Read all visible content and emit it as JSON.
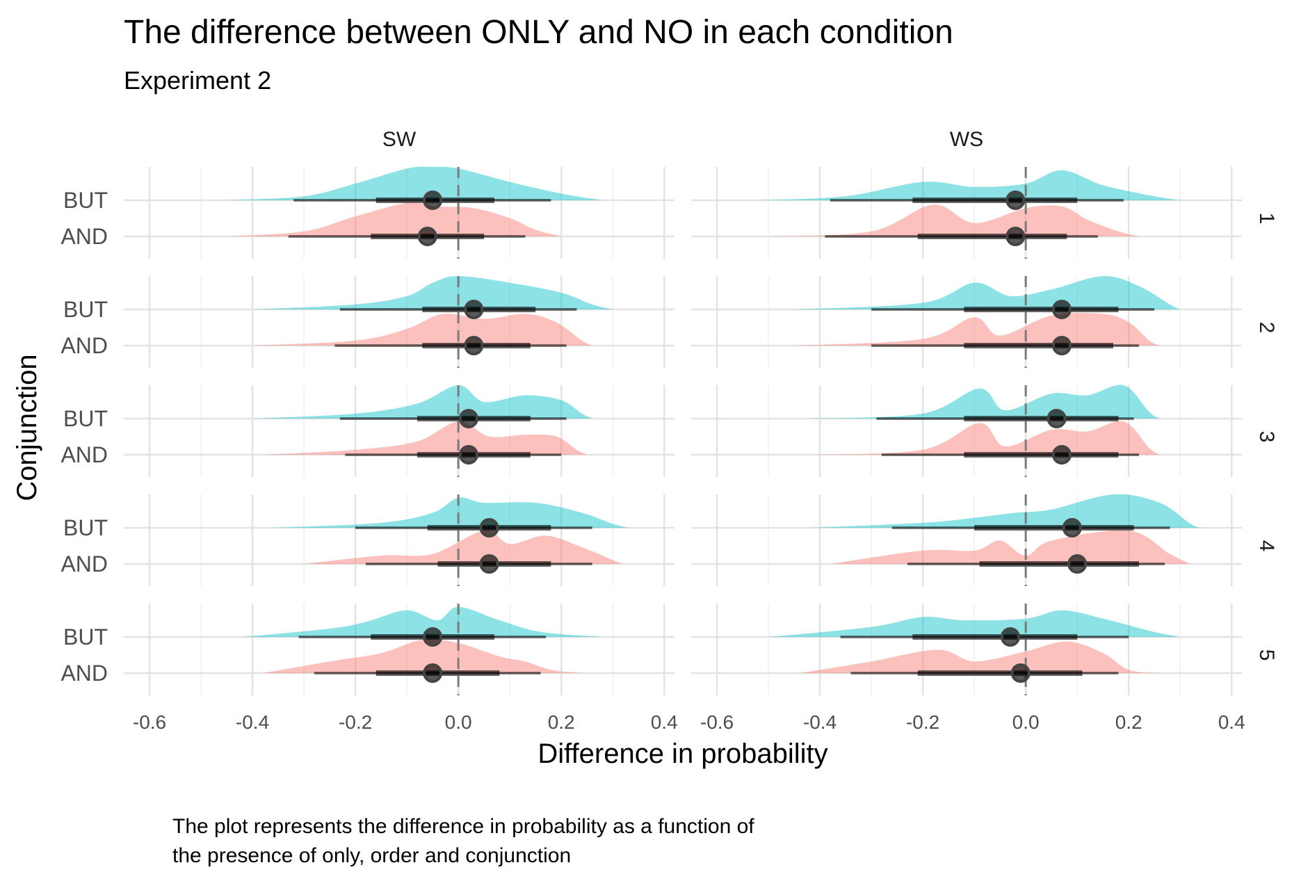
{
  "chart_data": {
    "type": "ridgeline-interval",
    "title": "The difference between ONLY and NO in each condition",
    "subtitle": "Experiment 2",
    "xlabel": "Difference in probability",
    "ylabel": "Conjunction",
    "caption": [
      "The plot represents the difference in probability as a function of",
      "the presence of only, order and conjunction"
    ],
    "columns": [
      "SW",
      "WS"
    ],
    "rows": [
      "1",
      "2",
      "3",
      "4",
      "5"
    ],
    "categories": [
      "BUT",
      "AND"
    ],
    "x_ticks": [
      "-0.6",
      "-0.4",
      "-0.2",
      "0.0",
      "0.2",
      "0.4"
    ],
    "xlim": [
      -0.65,
      0.42
    ],
    "colors": {
      "BUT": "#00BFC4",
      "AND": "#F8766D"
    },
    "reference_line": 0.0,
    "panels": [
      {
        "col": "SW",
        "row": "1",
        "series": [
          {
            "name": "BUT",
            "point": -0.05,
            "inner": [
              -0.16,
              0.07
            ],
            "outer": [
              -0.32,
              0.18
            ],
            "range": [
              -0.45,
              0.28
            ],
            "density": [
              [
                -0.3,
                0.12
              ],
              [
                -0.2,
                0.5
              ],
              [
                -0.1,
                0.95
              ],
              [
                -0.05,
                1.0
              ],
              [
                0.0,
                0.95
              ],
              [
                0.1,
                0.55
              ],
              [
                0.2,
                0.2
              ]
            ]
          },
          {
            "name": "AND",
            "point": -0.06,
            "inner": [
              -0.17,
              0.05
            ],
            "outer": [
              -0.33,
              0.13
            ],
            "range": [
              -0.45,
              0.2
            ],
            "density": [
              [
                -0.3,
                0.15
              ],
              [
                -0.2,
                0.6
              ],
              [
                -0.1,
                1.0
              ],
              [
                -0.04,
                0.9
              ],
              [
                0.03,
                0.85
              ],
              [
                0.1,
                0.55
              ],
              [
                0.15,
                0.2
              ]
            ]
          }
        ]
      },
      {
        "col": "WS",
        "row": "1",
        "series": [
          {
            "name": "BUT",
            "point": -0.02,
            "inner": [
              -0.22,
              0.1
            ],
            "outer": [
              -0.38,
              0.19
            ],
            "range": [
              -0.52,
              0.3
            ],
            "density": [
              [
                -0.35,
                0.12
              ],
              [
                -0.2,
                0.55
              ],
              [
                -0.1,
                0.4
              ],
              [
                0.0,
                0.5
              ],
              [
                0.07,
                0.9
              ],
              [
                0.15,
                0.45
              ],
              [
                0.25,
                0.12
              ]
            ]
          },
          {
            "name": "AND",
            "point": -0.02,
            "inner": [
              -0.21,
              0.08
            ],
            "outer": [
              -0.39,
              0.14
            ],
            "range": [
              -0.5,
              0.22
            ],
            "density": [
              [
                -0.3,
                0.15
              ],
              [
                -0.18,
                0.95
              ],
              [
                -0.1,
                0.4
              ],
              [
                0.0,
                0.85
              ],
              [
                0.07,
                0.9
              ],
              [
                0.12,
                0.5
              ],
              [
                0.18,
                0.15
              ]
            ]
          }
        ]
      },
      {
        "col": "SW",
        "row": "2",
        "series": [
          {
            "name": "BUT",
            "point": 0.03,
            "inner": [
              -0.07,
              0.15
            ],
            "outer": [
              -0.23,
              0.23
            ],
            "range": [
              -0.4,
              0.3
            ],
            "density": [
              [
                -0.2,
                0.15
              ],
              [
                -0.1,
                0.4
              ],
              [
                -0.05,
                0.8
              ],
              [
                0.0,
                1.0
              ],
              [
                0.1,
                0.8
              ],
              [
                0.2,
                0.5
              ],
              [
                0.26,
                0.15
              ]
            ]
          },
          {
            "name": "AND",
            "point": 0.03,
            "inner": [
              -0.07,
              0.14
            ],
            "outer": [
              -0.24,
              0.21
            ],
            "range": [
              -0.4,
              0.26
            ],
            "density": [
              [
                -0.2,
                0.15
              ],
              [
                -0.1,
                0.5
              ],
              [
                -0.03,
                0.95
              ],
              [
                0.05,
                0.8
              ],
              [
                0.13,
                0.95
              ],
              [
                0.19,
                0.7
              ],
              [
                0.24,
                0.15
              ]
            ]
          }
        ]
      },
      {
        "col": "WS",
        "row": "2",
        "series": [
          {
            "name": "BUT",
            "point": 0.07,
            "inner": [
              -0.12,
              0.18
            ],
            "outer": [
              -0.3,
              0.25
            ],
            "range": [
              -0.45,
              0.3
            ],
            "density": [
              [
                -0.2,
                0.2
              ],
              [
                -0.1,
                0.8
              ],
              [
                -0.03,
                0.4
              ],
              [
                0.05,
                0.6
              ],
              [
                0.15,
                1.0
              ],
              [
                0.22,
                0.7
              ],
              [
                0.28,
                0.15
              ]
            ]
          },
          {
            "name": "AND",
            "point": 0.07,
            "inner": [
              -0.12,
              0.17
            ],
            "outer": [
              -0.3,
              0.22
            ],
            "range": [
              -0.45,
              0.26
            ],
            "density": [
              [
                -0.2,
                0.2
              ],
              [
                -0.1,
                0.85
              ],
              [
                -0.05,
                0.3
              ],
              [
                0.05,
                0.9
              ],
              [
                0.15,
                0.95
              ],
              [
                0.2,
                0.7
              ],
              [
                0.24,
                0.15
              ]
            ]
          }
        ]
      },
      {
        "col": "SW",
        "row": "3",
        "series": [
          {
            "name": "BUT",
            "point": 0.02,
            "inner": [
              -0.08,
              0.14
            ],
            "outer": [
              -0.23,
              0.21
            ],
            "range": [
              -0.4,
              0.26
            ],
            "density": [
              [
                -0.2,
                0.15
              ],
              [
                -0.08,
                0.45
              ],
              [
                0.0,
                1.0
              ],
              [
                0.05,
                0.5
              ],
              [
                0.13,
                0.7
              ],
              [
                0.2,
                0.55
              ],
              [
                0.24,
                0.15
              ]
            ]
          },
          {
            "name": "AND",
            "point": 0.02,
            "inner": [
              -0.08,
              0.14
            ],
            "outer": [
              -0.22,
              0.2
            ],
            "range": [
              -0.38,
              0.25
            ],
            "density": [
              [
                -0.2,
                0.15
              ],
              [
                -0.08,
                0.4
              ],
              [
                0.0,
                1.0
              ],
              [
                0.06,
                0.55
              ],
              [
                0.13,
                0.6
              ],
              [
                0.19,
                0.55
              ],
              [
                0.23,
                0.15
              ]
            ]
          }
        ]
      },
      {
        "col": "WS",
        "row": "3",
        "series": [
          {
            "name": "BUT",
            "point": 0.06,
            "inner": [
              -0.12,
              0.18
            ],
            "outer": [
              -0.29,
              0.21
            ],
            "range": [
              -0.42,
              0.26
            ],
            "density": [
              [
                -0.2,
                0.15
              ],
              [
                -0.09,
                0.9
              ],
              [
                -0.04,
                0.25
              ],
              [
                0.05,
                0.75
              ],
              [
                0.12,
                0.7
              ],
              [
                0.19,
                1.0
              ],
              [
                0.24,
                0.2
              ]
            ]
          },
          {
            "name": "AND",
            "point": 0.07,
            "inner": [
              -0.12,
              0.18
            ],
            "outer": [
              -0.28,
              0.22
            ],
            "range": [
              -0.42,
              0.26
            ],
            "density": [
              [
                -0.2,
                0.15
              ],
              [
                -0.09,
                0.95
              ],
              [
                -0.04,
                0.25
              ],
              [
                0.05,
                0.75
              ],
              [
                0.12,
                0.7
              ],
              [
                0.19,
                1.0
              ],
              [
                0.24,
                0.2
              ]
            ]
          }
        ]
      },
      {
        "col": "SW",
        "row": "4",
        "series": [
          {
            "name": "BUT",
            "point": 0.06,
            "inner": [
              -0.06,
              0.18
            ],
            "outer": [
              -0.2,
              0.26
            ],
            "range": [
              -0.36,
              0.33
            ],
            "density": [
              [
                -0.15,
                0.15
              ],
              [
                -0.05,
                0.45
              ],
              [
                0.0,
                0.9
              ],
              [
                0.05,
                0.75
              ],
              [
                0.15,
                0.75
              ],
              [
                0.24,
                0.45
              ],
              [
                0.3,
                0.12
              ]
            ]
          },
          {
            "name": "AND",
            "point": 0.06,
            "inner": [
              -0.04,
              0.18
            ],
            "outer": [
              -0.18,
              0.26
            ],
            "range": [
              -0.3,
              0.32
            ],
            "density": [
              [
                -0.15,
                0.25
              ],
              [
                -0.05,
                0.3
              ],
              [
                0.05,
                1.0
              ],
              [
                0.1,
                0.6
              ],
              [
                0.17,
                0.85
              ],
              [
                0.24,
                0.5
              ],
              [
                0.3,
                0.12
              ]
            ]
          }
        ]
      },
      {
        "col": "WS",
        "row": "4",
        "series": [
          {
            "name": "BUT",
            "point": 0.09,
            "inner": [
              -0.1,
              0.21
            ],
            "outer": [
              -0.26,
              0.28
            ],
            "range": [
              -0.42,
              0.34
            ],
            "density": [
              [
                -0.2,
                0.15
              ],
              [
                -0.1,
                0.3
              ],
              [
                -0.02,
                0.45
              ],
              [
                0.05,
                0.55
              ],
              [
                0.17,
                1.0
              ],
              [
                0.26,
                0.75
              ],
              [
                0.32,
                0.12
              ]
            ]
          },
          {
            "name": "AND",
            "point": 0.1,
            "inner": [
              -0.09,
              0.22
            ],
            "outer": [
              -0.23,
              0.27
            ],
            "range": [
              -0.38,
              0.32
            ],
            "density": [
              [
                -0.2,
                0.4
              ],
              [
                -0.1,
                0.4
              ],
              [
                -0.05,
                0.7
              ],
              [
                0.0,
                0.25
              ],
              [
                0.05,
                0.7
              ],
              [
                0.2,
                1.0
              ],
              [
                0.28,
                0.3
              ]
            ]
          }
        ]
      },
      {
        "col": "SW",
        "row": "5",
        "series": [
          {
            "name": "BUT",
            "point": -0.05,
            "inner": [
              -0.17,
              0.07
            ],
            "outer": [
              -0.31,
              0.17
            ],
            "range": [
              -0.42,
              0.28
            ],
            "density": [
              [
                -0.25,
                0.25
              ],
              [
                -0.18,
                0.45
              ],
              [
                -0.1,
                0.8
              ],
              [
                -0.04,
                0.5
              ],
              [
                0.0,
                0.9
              ],
              [
                0.08,
                0.5
              ],
              [
                0.16,
                0.15
              ]
            ]
          },
          {
            "name": "AND",
            "point": -0.05,
            "inner": [
              -0.16,
              0.08
            ],
            "outer": [
              -0.28,
              0.16
            ],
            "range": [
              -0.38,
              0.24
            ],
            "density": [
              [
                -0.25,
                0.35
              ],
              [
                -0.15,
                0.6
              ],
              [
                -0.07,
                1.0
              ],
              [
                0.0,
                0.9
              ],
              [
                0.08,
                0.5
              ],
              [
                0.13,
                0.35
              ],
              [
                0.18,
                0.1
              ]
            ]
          }
        ]
      },
      {
        "col": "WS",
        "row": "5",
        "series": [
          {
            "name": "BUT",
            "point": -0.03,
            "inner": [
              -0.22,
              0.1
            ],
            "outer": [
              -0.36,
              0.2
            ],
            "range": [
              -0.5,
              0.3
            ],
            "density": [
              [
                -0.3,
                0.3
              ],
              [
                -0.2,
                0.6
              ],
              [
                -0.12,
                0.5
              ],
              [
                0.0,
                0.55
              ],
              [
                0.07,
                0.8
              ],
              [
                0.15,
                0.55
              ],
              [
                0.25,
                0.15
              ]
            ]
          },
          {
            "name": "AND",
            "point": -0.01,
            "inner": [
              -0.21,
              0.11
            ],
            "outer": [
              -0.34,
              0.18
            ],
            "range": [
              -0.44,
              0.26
            ],
            "density": [
              [
                -0.3,
                0.35
              ],
              [
                -0.17,
                0.7
              ],
              [
                -0.1,
                0.35
              ],
              [
                0.0,
                0.65
              ],
              [
                0.08,
                0.95
              ],
              [
                0.15,
                0.6
              ],
              [
                0.2,
                0.1
              ]
            ]
          }
        ]
      }
    ]
  }
}
